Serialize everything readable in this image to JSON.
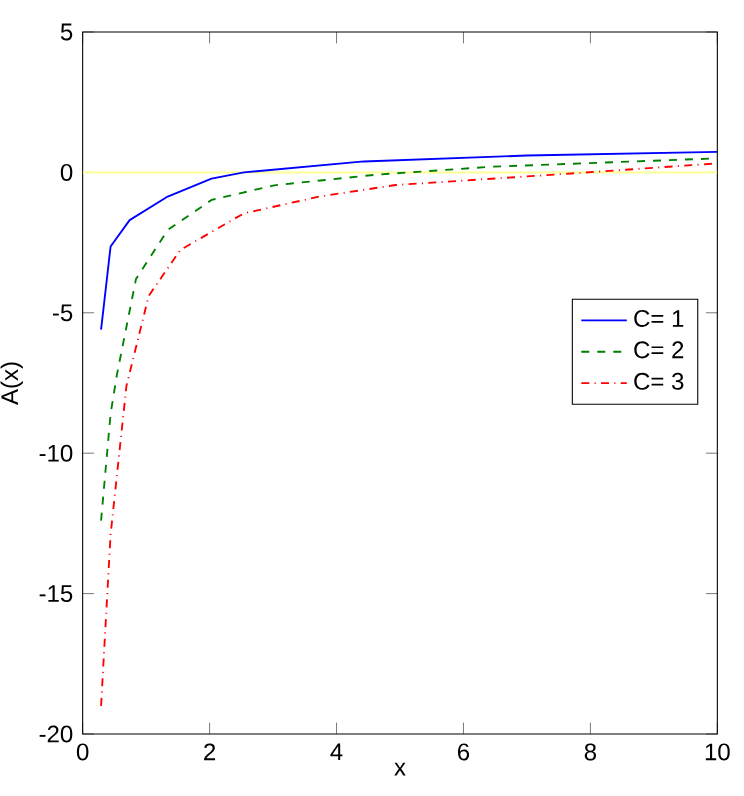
{
  "chart_data": {
    "type": "line",
    "xlabel": "x",
    "ylabel": "A(x)",
    "xlim": [
      0,
      10
    ],
    "ylim": [
      -20,
      5
    ],
    "xticks": [
      0,
      2,
      4,
      6,
      8,
      10
    ],
    "yticks": [
      -20,
      -15,
      -10,
      -5,
      0,
      5
    ],
    "legend": "right",
    "grid": false,
    "marker": "none",
    "ref_lines": [
      {
        "axis": "y",
        "value": 0,
        "color": "#ffff99"
      }
    ],
    "series": [
      {
        "name": "C= 1",
        "color": "#0000ff",
        "line_style": "solid",
        "x": [
          0.29,
          0.44,
          0.74,
          1.34,
          2.03,
          2.54,
          4.43,
          7,
          10
        ],
        "values": [
          -5.6,
          -2.64,
          -1.7,
          -0.86,
          -0.22,
          0,
          0.39,
          0.6,
          0.73
        ]
      },
      {
        "name": "C= 2",
        "color": "#008000",
        "line_style": "dashed",
        "x": [
          0.29,
          0.44,
          0.54,
          0.84,
          1.34,
          2.03,
          3.02,
          4.63,
          6.43,
          10
        ],
        "values": [
          -12.4,
          -8.6,
          -7.2,
          -3.8,
          -2.05,
          -0.98,
          -0.46,
          -0.08,
          0.2,
          0.5
        ]
      },
      {
        "name": "C= 3",
        "color": "#ff0000",
        "line_style": "dashdot",
        "x": [
          0.29,
          0.44,
          0.69,
          1.04,
          1.54,
          2.54,
          3.73,
          4.93,
          7.43,
          10
        ],
        "values": [
          -19.0,
          -12.9,
          -7.6,
          -4.4,
          -2.76,
          -1.46,
          -0.86,
          -0.45,
          -0.08,
          0.32
        ]
      }
    ]
  }
}
